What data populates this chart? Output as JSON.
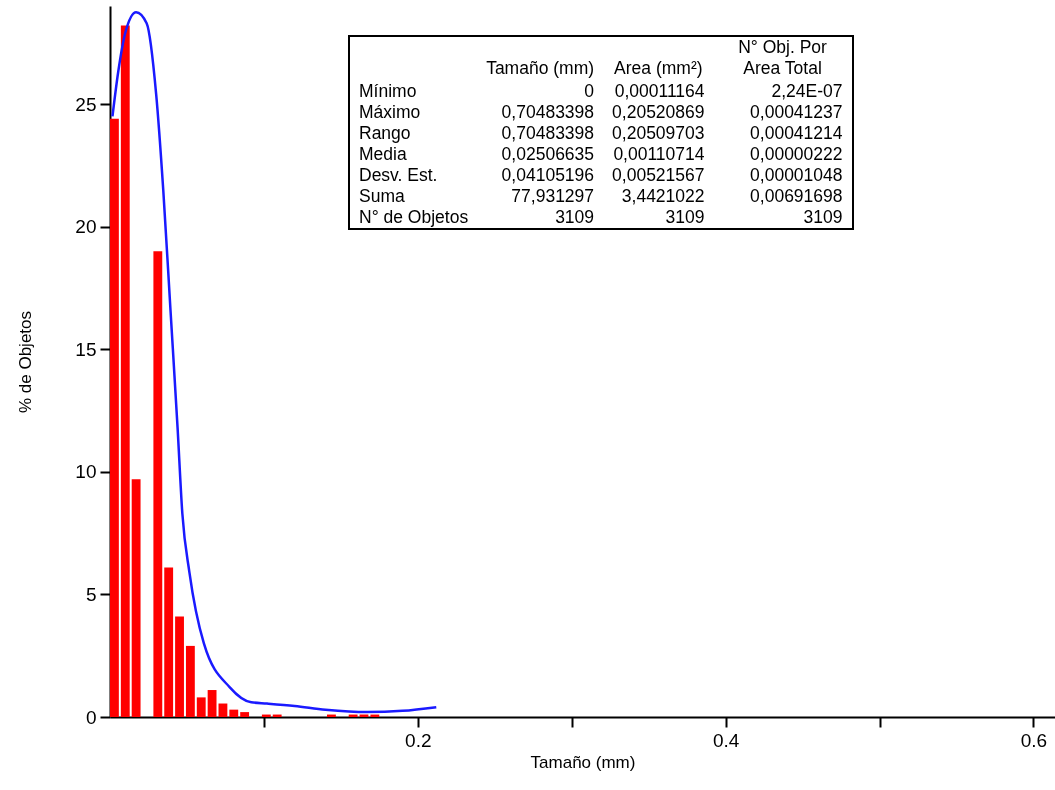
{
  "chart_data": {
    "type": "histogram",
    "xlabel": "Tamaño (mm)",
    "ylabel": "% de Objetos",
    "color": "#ff0000",
    "bins": [
      0,
      0.00705,
      0.0141,
      0.02115,
      0.0282,
      0.03525,
      0.0423,
      0.04935,
      0.0564,
      0.06345,
      0.0705,
      0.07755,
      0.0846,
      0.09165,
      0.0987,
      0.10575,
      0.1128,
      0.11985,
      0.1269,
      0.13395,
      0.141,
      0.14805,
      0.1551,
      0.16215,
      0.1692,
      0.17625
    ],
    "values": [
      24.4,
      28.2,
      9.7,
      0,
      19.0,
      6.1,
      4.1,
      2.9,
      0.8,
      1.1,
      0.55,
      0.3,
      0.2,
      0,
      0.1,
      0.1,
      0,
      0,
      0,
      0,
      0.1,
      0,
      0.1,
      0.1,
      0.1
    ],
    "series": [
      {
        "type": "line",
        "color": "#1a1aff",
        "x": [
          0.0016,
          0.0053,
          0.0099,
          0.017,
          0.0238,
          0.03,
          0.0346,
          0.0393,
          0.0439,
          0.047,
          0.0516,
          0.061,
          0.078,
          0.0918,
          0.102,
          0.12,
          0.14,
          0.167,
          0.19,
          0.212
        ],
        "values": [
          24.5,
          26.3,
          27.9,
          28.75,
          28.3,
          25.4,
          21.5,
          16.6,
          11.8,
          8.3,
          5.9,
          3.0,
          1.2,
          0.6,
          0.55,
          0.45,
          0.3,
          0.2,
          0.25,
          0.4
        ]
      }
    ],
    "xlim": [
      0,
      0.614
    ],
    "xticks": [
      {
        "value": 0.1,
        "label": null
      },
      0.2,
      {
        "value": 0.3,
        "label": null
      },
      0.4,
      {
        "value": 0.5,
        "label": null
      },
      0.6
    ],
    "ylim": [
      0,
      29
    ],
    "yticks": [
      0,
      5,
      10,
      15,
      20,
      25
    ],
    "grid": false,
    "annotations": [
      "Tamaño (mm)",
      "Area (mm²)",
      "N° Obj. Por Area Total",
      "Mínimo",
      "0",
      "0,00011164",
      "2,24E-07",
      "Máximo",
      "0,70483398",
      "0,20520869",
      "0,00041237",
      "Rango",
      "0,70483398",
      "0,20509703",
      "0,00041214",
      "Media",
      "0,02506635",
      "0,00110714",
      "0,00000222",
      "Desv. Est.",
      "0,04105196",
      "0,00521567",
      "0,00001048",
      "Suma",
      "77,931297",
      "3,4421022",
      "0,00691698",
      "N° de Objetos",
      "3109",
      "3109",
      "3109"
    ]
  }
}
